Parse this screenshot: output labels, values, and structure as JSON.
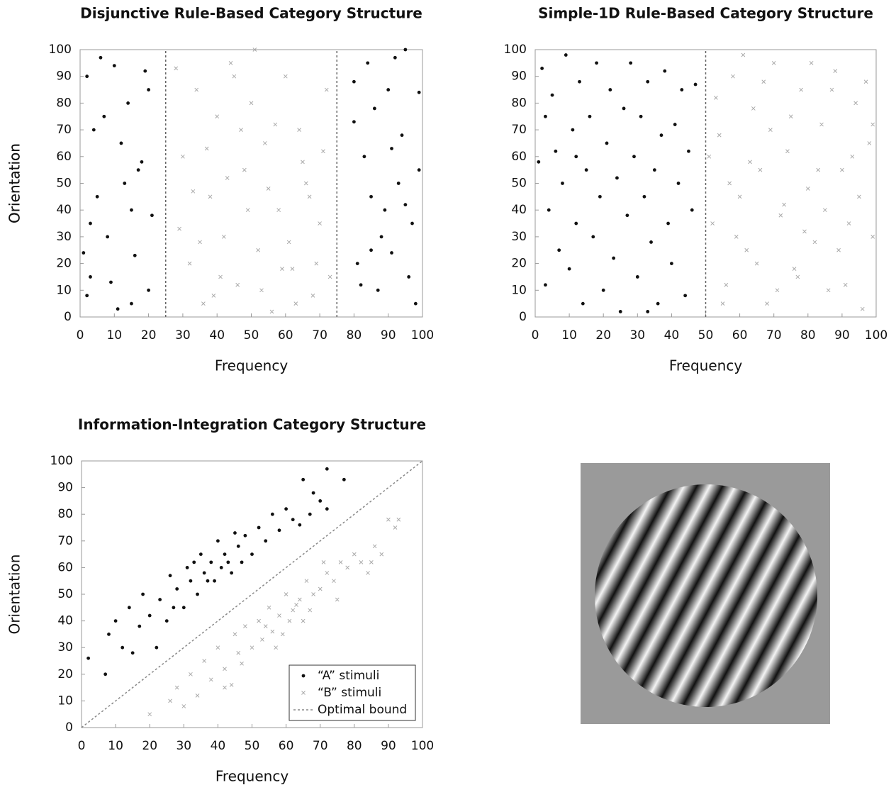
{
  "chart_data": [
    {
      "type": "scatter",
      "title": "Disjunctive Rule-Based Category Structure",
      "x_label": "Frequency",
      "y_label": "Orientation",
      "xlim": [
        0,
        100
      ],
      "ylim": [
        0,
        100
      ],
      "xticks": [
        0,
        10,
        20,
        30,
        40,
        50,
        60,
        70,
        80,
        90,
        100
      ],
      "yticks": [
        0,
        10,
        20,
        30,
        40,
        50,
        60,
        70,
        80,
        90,
        100
      ],
      "series": [
        {
          "color": "#111111",
          "marker": "dot",
          "x": [
            1,
            2,
            3,
            4,
            5,
            6,
            8,
            10,
            11,
            12,
            14,
            15,
            16,
            18,
            19,
            20,
            21,
            2,
            7,
            13,
            17,
            20,
            3,
            9,
            15,
            80,
            81,
            83,
            84,
            85,
            87,
            88,
            90,
            91,
            93,
            94,
            95,
            97,
            98,
            99,
            82,
            86,
            89,
            92,
            96,
            99,
            85,
            91,
            80,
            95
          ],
          "y": [
            24,
            90,
            15,
            70,
            45,
            97,
            30,
            94,
            3,
            65,
            80,
            40,
            23,
            58,
            92,
            10,
            38,
            8,
            75,
            50,
            55,
            85,
            35,
            13,
            5,
            73,
            20,
            60,
            95,
            45,
            10,
            30,
            85,
            24,
            50,
            68,
            100,
            35,
            5,
            84,
            12,
            78,
            40,
            97,
            15,
            55,
            25,
            63,
            88,
            42
          ]
        },
        {
          "color": "#aaaaaa",
          "marker": "x",
          "x": [
            28,
            30,
            32,
            34,
            36,
            38,
            40,
            42,
            44,
            46,
            48,
            50,
            52,
            54,
            56,
            58,
            60,
            62,
            64,
            66,
            68,
            70,
            72,
            29,
            33,
            37,
            41,
            45,
            49,
            53,
            57,
            61,
            65,
            69,
            71,
            35,
            39,
            43,
            47,
            51,
            55,
            59,
            63,
            67,
            73
          ],
          "y": [
            93,
            60,
            20,
            85,
            5,
            45,
            75,
            30,
            95,
            12,
            55,
            80,
            25,
            65,
            2,
            40,
            90,
            18,
            70,
            50,
            8,
            35,
            85,
            33,
            47,
            63,
            15,
            90,
            40,
            10,
            72,
            28,
            58,
            20,
            62,
            28,
            8,
            52,
            70,
            100,
            48,
            18,
            5,
            45,
            15
          ]
        },
        {
          "color": "#666666",
          "marker": "dashed-line",
          "x": [
            25,
            25
          ],
          "y": [
            0,
            100
          ]
        },
        {
          "color": "#666666",
          "marker": "dashed-line",
          "x": [
            75,
            75
          ],
          "y": [
            0,
            100
          ]
        }
      ]
    },
    {
      "type": "scatter",
      "title": "Simple-1D Rule-Based Category Structure",
      "x_label": "Frequency",
      "y_label": "Orientation",
      "xlim": [
        0,
        100
      ],
      "ylim": [
        0,
        100
      ],
      "xticks": [
        0,
        10,
        20,
        30,
        40,
        50,
        60,
        70,
        80,
        90,
        100
      ],
      "yticks": [
        0,
        10,
        20,
        30,
        40,
        50,
        60,
        70,
        80,
        90,
        100
      ],
      "series": [
        {
          "color": "#111111",
          "marker": "dot",
          "x": [
            1,
            2,
            3,
            4,
            5,
            6,
            7,
            8,
            9,
            10,
            11,
            12,
            13,
            14,
            15,
            16,
            17,
            18,
            19,
            20,
            21,
            22,
            23,
            24,
            25,
            26,
            27,
            28,
            29,
            30,
            31,
            32,
            33,
            34,
            35,
            36,
            37,
            38,
            39,
            40,
            41,
            42,
            43,
            44,
            45,
            46,
            47,
            3,
            12,
            33
          ],
          "y": [
            58,
            93,
            12,
            40,
            83,
            62,
            25,
            50,
            98,
            18,
            70,
            35,
            88,
            5,
            55,
            75,
            30,
            95,
            45,
            10,
            65,
            85,
            22,
            52,
            2,
            78,
            38,
            95,
            60,
            15,
            75,
            45,
            88,
            28,
            55,
            5,
            68,
            92,
            35,
            20,
            72,
            50,
            85,
            8,
            62,
            40,
            87,
            75,
            60,
            2
          ]
        },
        {
          "color": "#aaaaaa",
          "marker": "x",
          "x": [
            52,
            54,
            56,
            58,
            60,
            62,
            64,
            66,
            68,
            70,
            72,
            74,
            76,
            78,
            80,
            82,
            84,
            86,
            88,
            90,
            92,
            94,
            96,
            98,
            99,
            53,
            57,
            61,
            65,
            69,
            73,
            77,
            81,
            85,
            89,
            93,
            97,
            55,
            63,
            71,
            75,
            79,
            83,
            87,
            91,
            95,
            59,
            67,
            99,
            51
          ],
          "y": [
            35,
            68,
            12,
            90,
            45,
            25,
            78,
            55,
            5,
            95,
            38,
            62,
            18,
            85,
            48,
            28,
            72,
            10,
            92,
            55,
            35,
            80,
            3,
            65,
            30,
            82,
            50,
            98,
            20,
            70,
            42,
            15,
            95,
            40,
            25,
            60,
            88,
            5,
            58,
            10,
            75,
            32,
            55,
            85,
            12,
            45,
            30,
            88,
            72,
            60
          ]
        },
        {
          "color": "#666666",
          "marker": "dashed-line",
          "x": [
            50,
            50
          ],
          "y": [
            0,
            100
          ]
        }
      ]
    },
    {
      "type": "scatter",
      "title": "Information-Integration Category Structure",
      "x_label": "Frequency",
      "y_label": "Orientation",
      "xlim": [
        0,
        100
      ],
      "ylim": [
        0,
        100
      ],
      "xticks": [
        0,
        10,
        20,
        30,
        40,
        50,
        60,
        70,
        80,
        90,
        100
      ],
      "yticks": [
        0,
        10,
        20,
        30,
        40,
        50,
        60,
        70,
        80,
        90,
        100
      ],
      "legend": "lower right",
      "series": [
        {
          "name": "“A” stimuli",
          "color": "#111111",
          "marker": "dot",
          "x": [
            2,
            7,
            8,
            10,
            12,
            14,
            15,
            17,
            18,
            20,
            22,
            23,
            25,
            26,
            28,
            30,
            31,
            32,
            34,
            35,
            36,
            38,
            39,
            40,
            41,
            42,
            44,
            45,
            46,
            48,
            50,
            52,
            54,
            56,
            58,
            60,
            62,
            64,
            65,
            67,
            68,
            70,
            72,
            72,
            77,
            27,
            33,
            37,
            43,
            47
          ],
          "y": [
            26,
            20,
            35,
            40,
            30,
            45,
            28,
            38,
            50,
            42,
            30,
            48,
            40,
            57,
            52,
            45,
            60,
            55,
            50,
            65,
            58,
            62,
            55,
            70,
            60,
            65,
            58,
            73,
            68,
            72,
            65,
            75,
            70,
            80,
            74,
            82,
            78,
            76,
            93,
            80,
            88,
            85,
            97,
            82,
            93,
            45,
            62,
            55,
            62,
            62
          ]
        },
        {
          "name": "“B” stimuli",
          "color": "#aaaaaa",
          "marker": "x",
          "x": [
            20,
            26,
            28,
            30,
            32,
            34,
            36,
            38,
            40,
            42,
            44,
            45,
            46,
            48,
            50,
            52,
            53,
            55,
            56,
            58,
            59,
            60,
            62,
            64,
            65,
            66,
            68,
            70,
            72,
            74,
            75,
            76,
            78,
            80,
            82,
            84,
            86,
            88,
            90,
            92,
            93,
            42,
            47,
            54,
            57,
            61,
            63,
            67,
            71,
            85
          ],
          "y": [
            5,
            10,
            15,
            8,
            20,
            12,
            25,
            18,
            30,
            22,
            16,
            35,
            28,
            38,
            30,
            40,
            33,
            45,
            36,
            42,
            35,
            50,
            44,
            48,
            40,
            55,
            50,
            52,
            58,
            55,
            48,
            62,
            60,
            65,
            62,
            58,
            68,
            65,
            78,
            75,
            78,
            15,
            24,
            38,
            30,
            40,
            46,
            44,
            62,
            62
          ]
        },
        {
          "name": "Optimal bound",
          "color": "#888888",
          "marker": "dashed-line",
          "x": [
            0,
            100
          ],
          "y": [
            0,
            100
          ]
        }
      ]
    }
  ]
}
